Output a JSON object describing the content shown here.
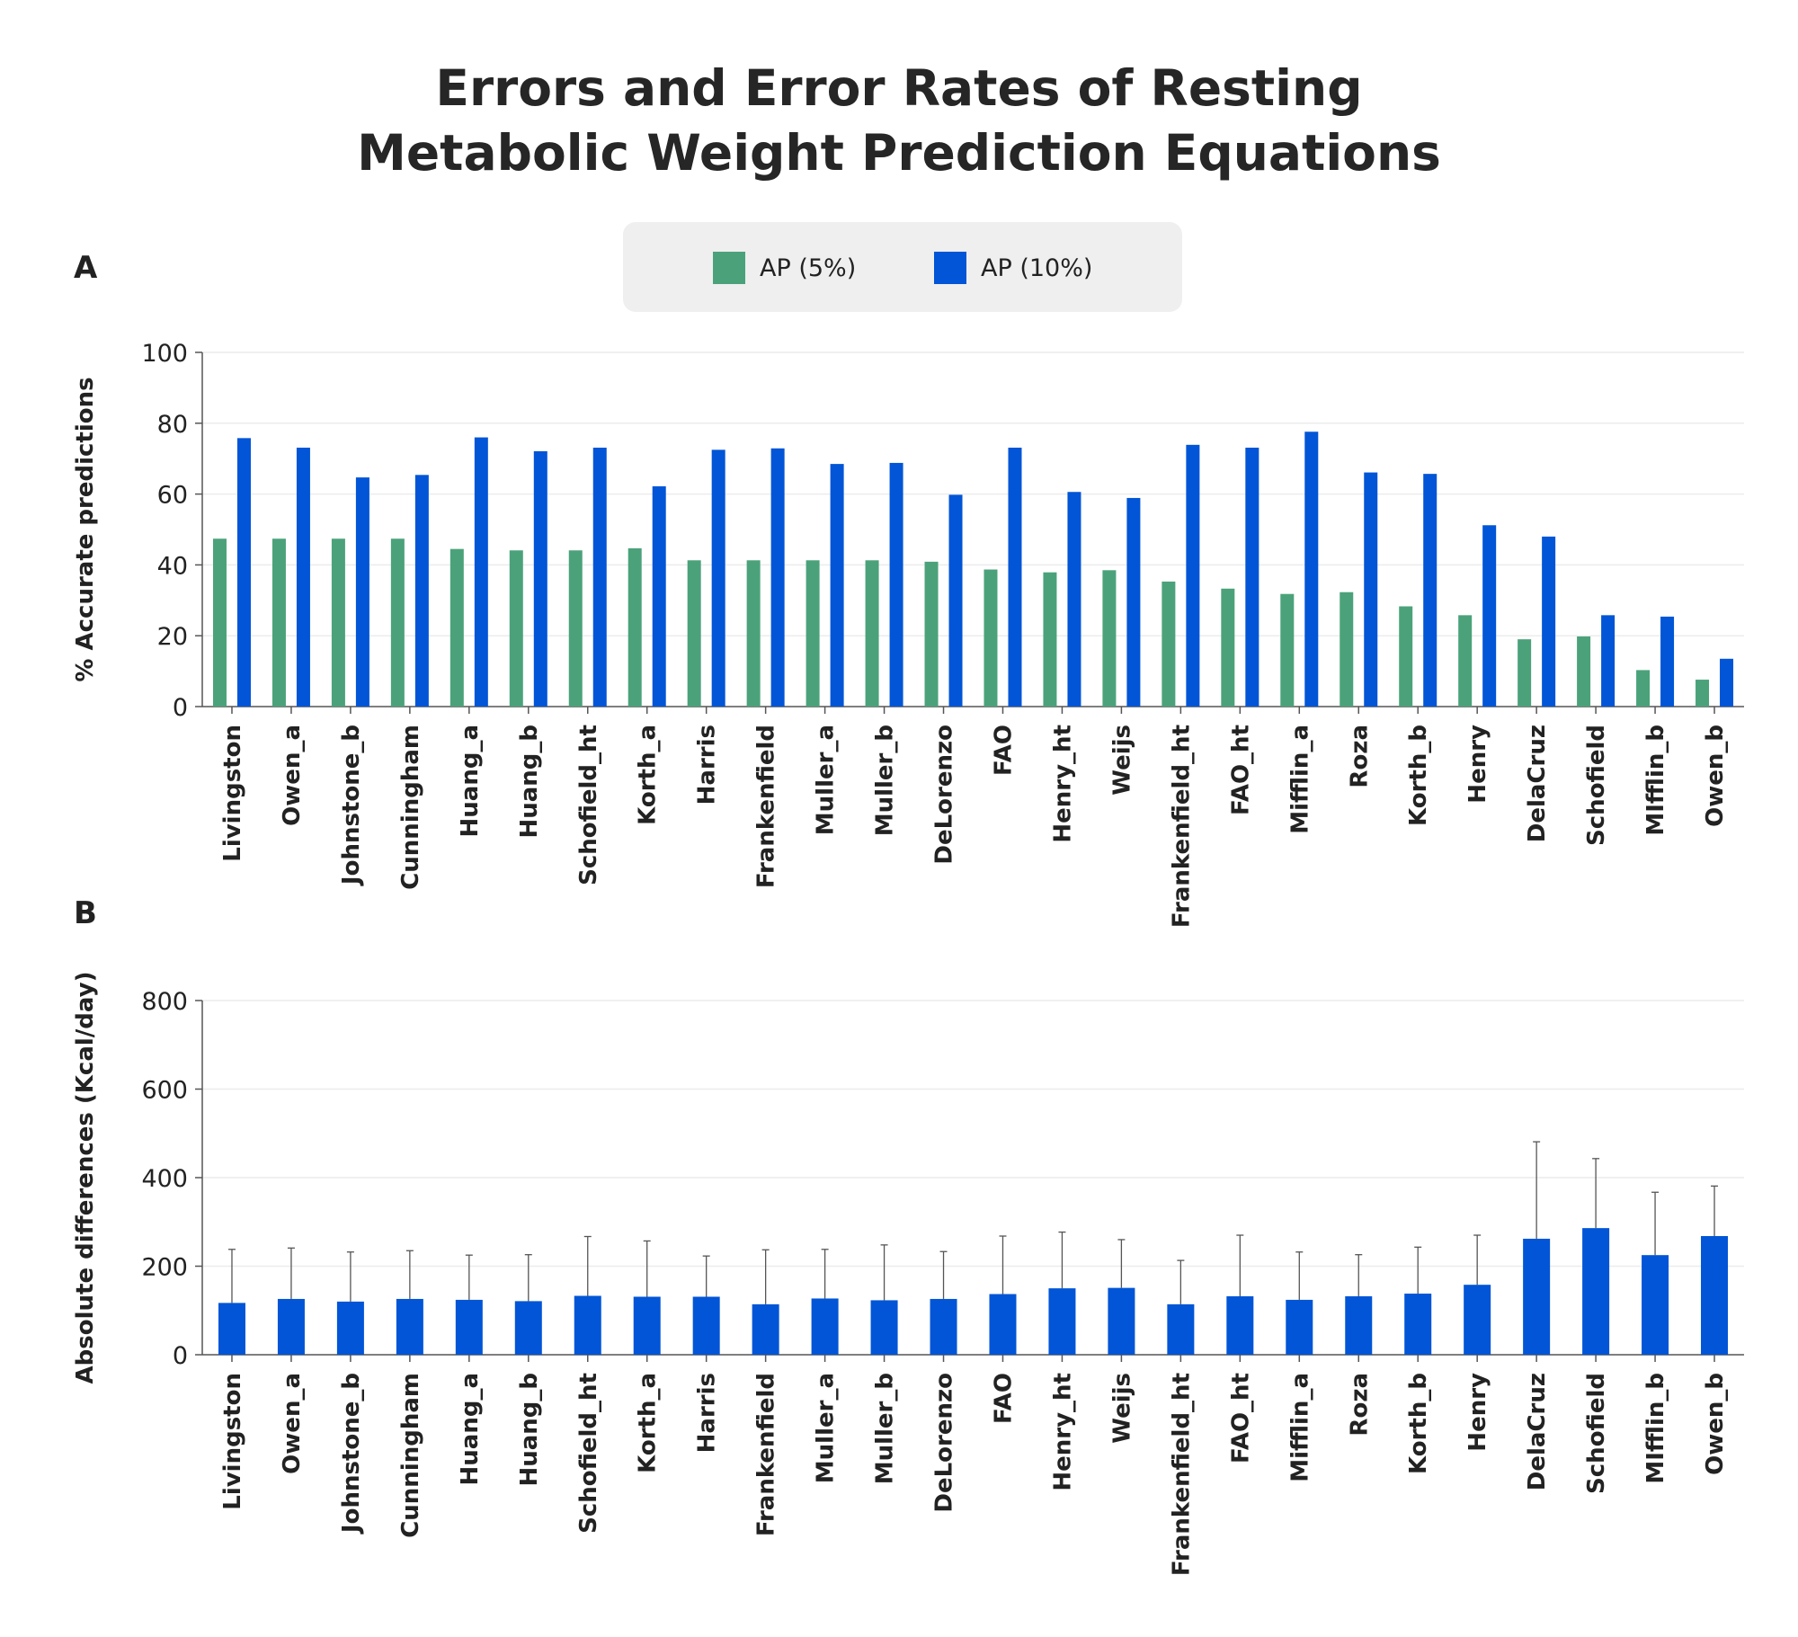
{
  "title_line1": "Errors and Error Rates of Resting",
  "title_line2": "Metabolic Weight Prediction Equations",
  "legend": [
    {
      "label": "AP (5%)",
      "color": "#4ba27a"
    },
    {
      "label": "AP (10%)",
      "color": "#0155d6"
    }
  ],
  "chart_data": [
    {
      "panel": "A",
      "type": "bar",
      "ylabel": "% Accurate predictions",
      "ylim": [
        0,
        100
      ],
      "yticks": [
        0,
        20,
        40,
        60,
        80,
        100
      ],
      "grid": true,
      "categories": [
        "Livingston",
        "Owen_a",
        "Johnstone_b",
        "Cunningham",
        "Huang_a",
        "Huang_b",
        "Schofield_ht",
        "Korth_a",
        "Harris",
        "Frankenfield",
        "Muller_a",
        "Muller_b",
        "DeLorenzo",
        "FAO",
        "Henry_ht",
        "Weijs",
        "Frankenfield_ht",
        "FAO_ht",
        "Mifflin_a",
        "Roza",
        "Korth_b",
        "Henry",
        "DelaCruz",
        "Schofield",
        "MIfflin_b",
        "Owen_b"
      ],
      "series": [
        {
          "name": "AP (5%)",
          "color": "#4ba27a",
          "values": [
            47.4,
            47.4,
            47.4,
            47.4,
            44.5,
            44.1,
            44.1,
            44.7,
            41.3,
            41.3,
            41.3,
            41.3,
            40.9,
            38.7,
            37.9,
            38.5,
            35.3,
            33.3,
            31.8,
            32.3,
            28.3,
            25.8,
            19.0,
            19.8,
            10.3,
            7.6
          ]
        },
        {
          "name": "AP (10%)",
          "color": "#0155d6",
          "values": [
            75.8,
            73.1,
            64.7,
            65.4,
            76.0,
            72.1,
            73.1,
            62.2,
            72.5,
            72.9,
            68.5,
            68.8,
            59.8,
            73.1,
            60.6,
            58.9,
            73.9,
            73.1,
            77.6,
            66.1,
            65.7,
            51.2,
            48.0,
            25.8,
            25.4,
            13.5
          ]
        }
      ]
    },
    {
      "panel": "B",
      "type": "bar",
      "ylabel": "Absolute differences (Kcal/day)",
      "ylim": [
        0,
        800
      ],
      "yticks": [
        0,
        200,
        400,
        600,
        800
      ],
      "grid": true,
      "categories": [
        "Livingston",
        "Owen_a",
        "Johnstone_b",
        "Cunningham",
        "Huang_a",
        "Huang_b",
        "Schofield_ht",
        "Korth_a",
        "Harris",
        "Frankenfield",
        "Muller_a",
        "Muller_b",
        "DeLorenzo",
        "FAO",
        "Henry_ht",
        "Weijs",
        "Frankenfield_ht",
        "FAO_ht",
        "Mifflin_a",
        "Roza",
        "Korth_b",
        "Henry",
        "DelaCruz",
        "Schofield",
        "MIfflin_b",
        "Owen_b"
      ],
      "series": [
        {
          "name": "",
          "color": "#0155d6",
          "values": [
            117,
            126,
            120,
            126,
            124,
            121,
            133,
            131,
            131,
            114,
            127,
            123,
            126,
            137,
            150,
            151,
            114,
            132,
            124,
            132,
            138,
            158,
            262,
            286,
            225,
            268
          ],
          "error_upper": [
            238,
            241,
            232,
            235,
            225,
            226,
            267,
            257,
            223,
            237,
            238,
            248,
            233,
            268,
            277,
            260,
            213,
            270,
            232,
            226,
            243,
            270,
            481,
            443,
            367,
            381
          ]
        }
      ]
    }
  ]
}
